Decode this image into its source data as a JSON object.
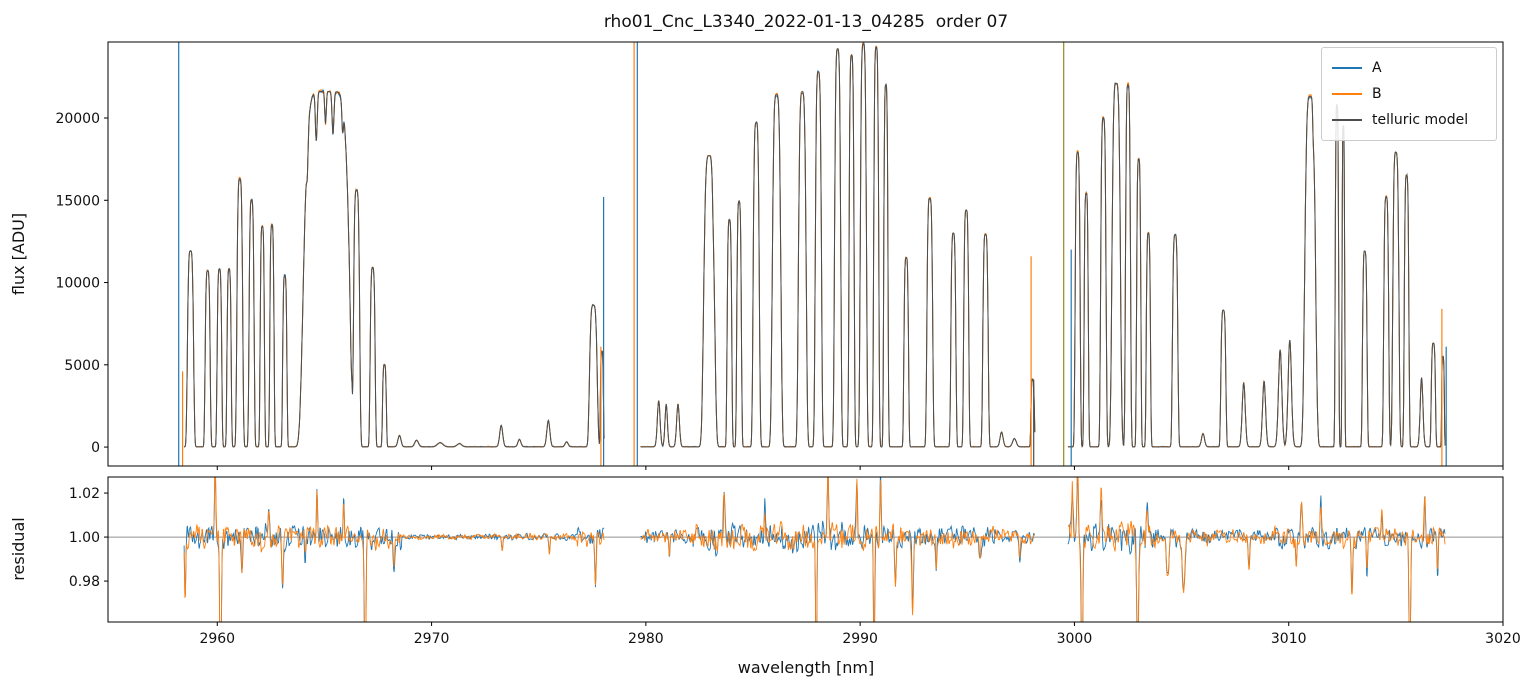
{
  "chart_data": {
    "type": "line",
    "title": "rho01_Cnc_L3340_2022-01-13_04285  order 07",
    "xlabel": "wavelength [nm]",
    "xlim": [
      2954.9,
      3020
    ],
    "xticks": [
      2960,
      2970,
      2980,
      2990,
      3000,
      3010,
      3020
    ],
    "panels": [
      {
        "ylabel": "flux [ADU]",
        "ylim": [
          -1150,
          24620
        ],
        "yticks": [
          0,
          5000,
          10000,
          15000,
          20000
        ],
        "ytick_labels": [
          "0",
          "5000",
          "10000",
          "15000",
          "20000"
        ]
      },
      {
        "ylabel": "residual",
        "ylim": [
          0.9614,
          1.0273
        ],
        "yticks": [
          0.98,
          1.0,
          1.02
        ],
        "ytick_labels": [
          "0.98",
          "1.00",
          "1.02"
        ],
        "hline": 1.0
      }
    ],
    "legend": [
      {
        "label": "A",
        "color": "#1f77b4"
      },
      {
        "label": "B",
        "color": "#ff7f0e"
      },
      {
        "label": "telluric model",
        "color": "#4d4d4d"
      }
    ],
    "series_colors": {
      "A": "#1f77b4",
      "B": "#ff7f0e",
      "T": "#4d4d4d",
      "olive": "#938820"
    },
    "segments": [
      {
        "x0": 2958.45,
        "x1": 2978.05,
        "blocks": [
          [
            2958.75,
            11900,
            0.16,
            4
          ],
          [
            2959.55,
            10700,
            0.13,
            4
          ],
          [
            2960.1,
            10800,
            0.12,
            4
          ],
          [
            2960.55,
            10800,
            0.11,
            4
          ],
          [
            2961.05,
            16300,
            0.15,
            4
          ],
          [
            2961.6,
            15000,
            0.13,
            4
          ],
          [
            2962.1,
            13400,
            0.11,
            4
          ],
          [
            2962.55,
            13500,
            0.11,
            4
          ],
          [
            2963.15,
            10400,
            0.11,
            4
          ],
          [
            2965.1,
            21600,
            1.12,
            8
          ],
          [
            2966.5,
            15600,
            0.16,
            4
          ],
          [
            2967.25,
            10900,
            0.13,
            4
          ],
          [
            2967.8,
            5000,
            0.1,
            4
          ],
          [
            2968.5,
            700,
            0.1,
            2
          ],
          [
            2969.3,
            400,
            0.12,
            2
          ],
          [
            2970.4,
            250,
            0.18,
            2
          ],
          [
            2971.3,
            200,
            0.15,
            2
          ],
          [
            2973.25,
            1300,
            0.1,
            2
          ],
          [
            2974.1,
            450,
            0.1,
            2
          ],
          [
            2975.45,
            1600,
            0.1,
            2
          ],
          [
            2976.3,
            300,
            0.1,
            2
          ],
          [
            2977.55,
            8600,
            0.2,
            4
          ],
          [
            2977.95,
            5800,
            0.08,
            4
          ]
        ],
        "notches": [
          [
            2964.2,
            0.1,
            0.05
          ],
          [
            2964.62,
            0.14,
            0.06
          ],
          [
            2965.05,
            0.09,
            0.05
          ],
          [
            2965.4,
            0.12,
            0.06
          ],
          [
            2965.85,
            0.08,
            0.05
          ],
          [
            2966.25,
            0.2,
            0.05
          ]
        ]
      },
      {
        "x0": 2979.75,
        "x1": 2998.15,
        "blocks": [
          [
            2980.6,
            2800,
            0.09,
            2
          ],
          [
            2980.95,
            2600,
            0.08,
            2
          ],
          [
            2981.5,
            2600,
            0.09,
            2
          ],
          [
            2982.95,
            17700,
            0.28,
            4
          ],
          [
            2983.9,
            13800,
            0.12,
            4
          ],
          [
            2984.35,
            14900,
            0.12,
            4
          ],
          [
            2985.15,
            19700,
            0.16,
            4
          ],
          [
            2986.1,
            21400,
            0.22,
            4
          ],
          [
            2987.3,
            21500,
            0.2,
            4
          ],
          [
            2988.05,
            22800,
            0.16,
            4
          ],
          [
            2988.95,
            24200,
            0.16,
            4
          ],
          [
            2989.6,
            23800,
            0.13,
            4
          ],
          [
            2990.15,
            24500,
            0.16,
            4
          ],
          [
            2990.75,
            24300,
            0.13,
            4
          ],
          [
            2991.2,
            22000,
            0.11,
            4
          ],
          [
            2992.15,
            11500,
            0.12,
            4
          ],
          [
            2993.25,
            15100,
            0.15,
            4
          ],
          [
            2994.35,
            13000,
            0.13,
            4
          ],
          [
            2994.95,
            14400,
            0.13,
            4
          ],
          [
            2995.85,
            12900,
            0.14,
            4
          ],
          [
            2996.6,
            900,
            0.1,
            2
          ],
          [
            2997.2,
            500,
            0.12,
            2
          ],
          [
            2998.05,
            4100,
            0.09,
            4
          ]
        ],
        "notches": [
          [
            2983.15,
            0.08,
            0.05
          ],
          [
            2985.6,
            0.3,
            0.06
          ],
          [
            2986.45,
            0.12,
            0.05
          ],
          [
            2987.0,
            0.25,
            0.05
          ],
          [
            2988.5,
            0.3,
            0.05
          ],
          [
            2989.3,
            0.35,
            0.05
          ],
          [
            2989.9,
            0.2,
            0.04
          ],
          [
            2990.5,
            0.12,
            0.04
          ],
          [
            2991.0,
            0.15,
            0.04
          ],
          [
            2992.6,
            0.4,
            0.05
          ]
        ]
      },
      {
        "x0": 2999.7,
        "x1": 3017.3,
        "blocks": [
          [
            3000.15,
            17900,
            0.13,
            4
          ],
          [
            3000.55,
            15400,
            0.11,
            4
          ],
          [
            3001.35,
            20000,
            0.14,
            4
          ],
          [
            3001.95,
            22100,
            0.22,
            4
          ],
          [
            3002.5,
            22000,
            0.13,
            4
          ],
          [
            3003.0,
            17500,
            0.11,
            4
          ],
          [
            3003.45,
            13000,
            0.11,
            4
          ],
          [
            3004.7,
            12900,
            0.14,
            4
          ],
          [
            3006.0,
            800,
            0.1,
            2
          ],
          [
            3006.95,
            8300,
            0.13,
            4
          ],
          [
            3007.9,
            3900,
            0.1,
            2
          ],
          [
            3008.85,
            4000,
            0.1,
            2
          ],
          [
            3009.6,
            5900,
            0.11,
            2
          ],
          [
            3010.05,
            6500,
            0.11,
            2
          ],
          [
            3011.0,
            21300,
            0.28,
            4
          ],
          [
            3012.25,
            20800,
            0.09,
            4
          ],
          [
            3012.55,
            19500,
            0.07,
            4
          ],
          [
            3013.55,
            11900,
            0.12,
            4
          ],
          [
            3014.55,
            15200,
            0.13,
            4
          ],
          [
            3015.0,
            17900,
            0.16,
            4
          ],
          [
            3015.5,
            16500,
            0.12,
            4
          ],
          [
            3016.2,
            4200,
            0.09,
            2
          ],
          [
            3016.75,
            6300,
            0.11,
            4
          ],
          [
            3017.2,
            5500,
            0.07,
            4
          ]
        ],
        "notches": [
          [
            3000.35,
            0.25,
            0.04
          ],
          [
            3001.62,
            0.15,
            0.04
          ],
          [
            3002.2,
            0.1,
            0.04
          ],
          [
            3011.15,
            0.07,
            0.04
          ],
          [
            3014.78,
            0.12,
            0.04
          ],
          [
            3015.25,
            0.12,
            0.04
          ]
        ]
      }
    ],
    "spikes": [
      [
        2958.2,
        "A",
        -1150,
        24620
      ],
      [
        2958.38,
        "B",
        -1150,
        4600
      ],
      [
        2977.9,
        "B",
        -1150,
        6100
      ],
      [
        2978.03,
        "A",
        -1150,
        15200
      ],
      [
        2979.45,
        "B",
        -1150,
        24620
      ],
      [
        2979.6,
        "A",
        -1150,
        24620
      ],
      [
        2997.98,
        "B",
        -1150,
        11600
      ],
      [
        2998.1,
        "T",
        -1150,
        4100
      ],
      [
        2999.5,
        "olive",
        -1150,
        24620
      ],
      [
        2999.85,
        "A",
        -1150,
        12000
      ],
      [
        3017.15,
        "B",
        -1150,
        8400
      ],
      [
        3017.35,
        "A",
        -1150,
        6100
      ]
    ],
    "residual": {
      "amp_regions": [
        [
          2958.3,
          2968.6,
          0.007
        ],
        [
          2968.6,
          2972.5,
          0.0015
        ],
        [
          2972.5,
          2976.8,
          0.002
        ],
        [
          2976.8,
          2978.2,
          0.005
        ],
        [
          2979.3,
          2982.2,
          0.004
        ],
        [
          2982.2,
          2992.0,
          0.008
        ],
        [
          2992.0,
          2996.3,
          0.006
        ],
        [
          2996.3,
          2998.2,
          0.004
        ],
        [
          2999.5,
          3003.8,
          0.009
        ],
        [
          3003.8,
          3006.3,
          0.005
        ],
        [
          3006.3,
          3009.3,
          0.004
        ],
        [
          3009.3,
          3013.2,
          0.006
        ],
        [
          3013.2,
          3017.5,
          0.006
        ]
      ],
      "features": [
        [
          2958.5,
          0.975,
          0.04
        ],
        [
          2959.9,
          1.028,
          0.04
        ],
        [
          2960.15,
          0.93,
          0.05
        ],
        [
          2961.15,
          0.985,
          0.04
        ],
        [
          2962.4,
          1.015,
          0.04
        ],
        [
          2963.05,
          0.978,
          0.05
        ],
        [
          2964.1,
          0.988,
          0.04
        ],
        [
          2964.65,
          1.02,
          0.04
        ],
        [
          2965.9,
          1.014,
          0.04
        ],
        [
          2966.9,
          0.925,
          0.05
        ],
        [
          2968.25,
          0.987,
          0.04
        ],
        [
          2973.3,
          0.994,
          0.04
        ],
        [
          2975.5,
          0.992,
          0.04
        ],
        [
          2977.65,
          0.979,
          0.05
        ],
        [
          2981.1,
          0.993,
          0.04
        ],
        [
          2983.3,
          0.991,
          0.05
        ],
        [
          2983.65,
          1.02,
          0.05
        ],
        [
          2985.0,
          0.993,
          0.04
        ],
        [
          2985.55,
          1.016,
          0.04
        ],
        [
          2987.95,
          0.93,
          0.04
        ],
        [
          2988.5,
          1.028,
          0.05
        ],
        [
          2989.85,
          1.024,
          0.04
        ],
        [
          2990.65,
          0.94,
          0.04
        ],
        [
          2990.95,
          1.028,
          0.04
        ],
        [
          2991.65,
          0.977,
          0.05
        ],
        [
          2992.45,
          0.968,
          0.05
        ],
        [
          2993.55,
          0.987,
          0.04
        ],
        [
          2995.6,
          0.991,
          0.05
        ],
        [
          2997.45,
          0.992,
          0.05
        ],
        [
          2999.9,
          1.02,
          0.04
        ],
        [
          3000.15,
          1.03,
          0.04
        ],
        [
          3000.35,
          0.93,
          0.05
        ],
        [
          3001.25,
          1.022,
          0.05
        ],
        [
          3002.95,
          0.945,
          0.06
        ],
        [
          3003.4,
          1.015,
          0.04
        ],
        [
          3004.35,
          0.982,
          0.08
        ],
        [
          3005.1,
          0.975,
          0.09
        ],
        [
          3008.15,
          0.985,
          0.05
        ],
        [
          3010.35,
          0.99,
          0.04
        ],
        [
          3010.6,
          1.016,
          0.05
        ],
        [
          3011.5,
          1.018,
          0.04
        ],
        [
          3012.95,
          0.975,
          0.05
        ],
        [
          3013.65,
          0.983,
          0.04
        ],
        [
          3014.35,
          1.012,
          0.04
        ],
        [
          3015.65,
          0.94,
          0.05
        ],
        [
          3016.35,
          1.02,
          0.04
        ],
        [
          3016.95,
          0.985,
          0.04
        ]
      ]
    }
  }
}
